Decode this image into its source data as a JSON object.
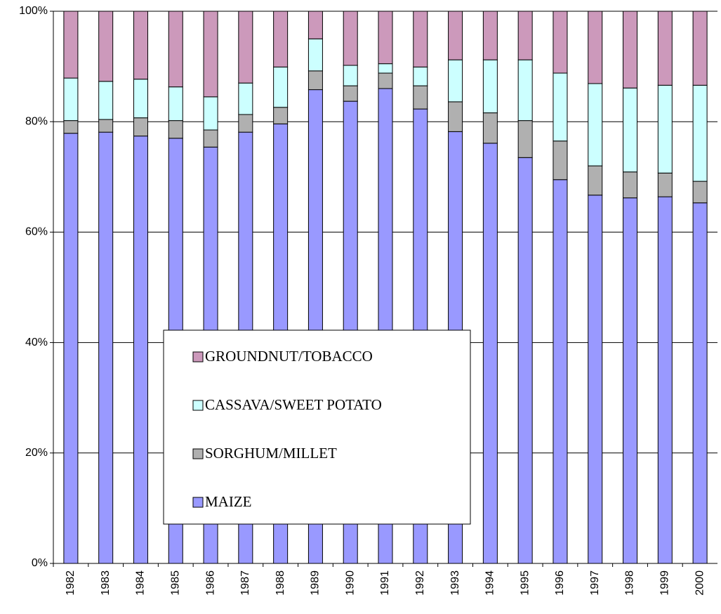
{
  "chart_data": {
    "type": "stacked_bar",
    "categories": [
      "1982",
      "1983",
      "1984",
      "1985",
      "1986",
      "1987",
      "1988",
      "1989",
      "1990",
      "1991",
      "1992",
      "1993",
      "1994",
      "1995",
      "1996",
      "1997",
      "1998",
      "1999",
      "2000"
    ],
    "series": [
      {
        "name": "MAIZE",
        "color": "#9999ff",
        "values": [
          77.9,
          78.1,
          77.4,
          77.0,
          75.4,
          78.1,
          79.6,
          85.8,
          83.7,
          86.0,
          82.3,
          78.2,
          76.1,
          73.5,
          69.5,
          66.7,
          66.2,
          66.4,
          65.3
        ]
      },
      {
        "name": "SORGHUM/MILLET",
        "color": "#b0b0b0",
        "values": [
          2.3,
          2.3,
          3.3,
          3.2,
          3.1,
          3.2,
          3.0,
          3.4,
          2.8,
          2.8,
          4.2,
          5.4,
          5.5,
          6.7,
          7.0,
          5.3,
          4.7,
          4.3,
          3.9
        ]
      },
      {
        "name": "CASSAVA/SWEET POTATO",
        "color": "#ccffff",
        "values": [
          7.7,
          6.9,
          7.0,
          6.1,
          6.0,
          5.7,
          7.3,
          5.8,
          3.7,
          1.7,
          3.4,
          7.6,
          9.6,
          11.0,
          12.3,
          14.9,
          15.2,
          15.9,
          17.4
        ]
      },
      {
        "name": "GROUNDNUT/TOBACCO",
        "color": "#cc99bb",
        "values": [
          12.1,
          12.7,
          12.3,
          13.7,
          15.5,
          13.0,
          10.1,
          5.0,
          9.8,
          9.5,
          10.1,
          8.8,
          8.8,
          8.8,
          11.2,
          13.1,
          13.9,
          13.4,
          13.4
        ]
      }
    ],
    "ylim": [
      0,
      100
    ],
    "yticks": [
      {
        "value": 0,
        "label": "0%"
      },
      {
        "value": 20,
        "label": "20%"
      },
      {
        "value": 40,
        "label": "40%"
      },
      {
        "value": 60,
        "label": "60%"
      },
      {
        "value": 80,
        "label": "80%"
      },
      {
        "value": 100,
        "label": "100%"
      }
    ],
    "grid": true
  }
}
